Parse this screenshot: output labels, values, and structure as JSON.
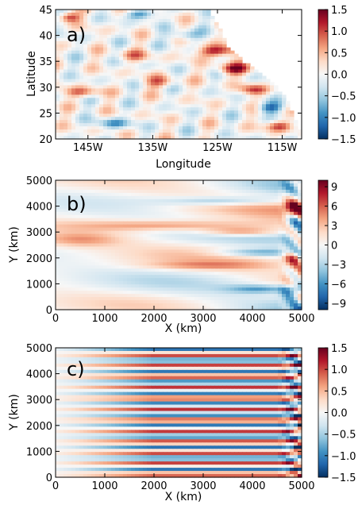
{
  "colors": {
    "diverging": [
      "#053061",
      "#2166ac",
      "#4393c3",
      "#92c5de",
      "#d1e5f0",
      "#f7f7f7",
      "#fddbc7",
      "#f4a582",
      "#d6604d",
      "#b2182b",
      "#67001f"
    ],
    "axis": "#000000"
  },
  "chart_data": [
    {
      "type": "heatmap",
      "panel_label": "a)",
      "xlabel": "Longitude",
      "ylabel": "Latitude",
      "xlim": [
        -150,
        -112
      ],
      "ylim": [
        20,
        45
      ],
      "xticks": [
        -145,
        -135,
        -125,
        -115
      ],
      "xtick_labels": [
        "145W",
        "135W",
        "125W",
        "115W"
      ],
      "yticks": [
        20,
        25,
        30,
        35,
        40,
        45
      ],
      "ytick_labels": [
        "20",
        "25",
        "30",
        "35",
        "40",
        "45"
      ],
      "colorbar": {
        "range": [
          -1.5,
          1.5
        ],
        "ticks": [
          1.5,
          1.0,
          0.5,
          0.0,
          -0.5,
          -1.0,
          -1.5
        ],
        "tick_labels": [
          "1.5",
          "1.0",
          "0.5",
          "0.0",
          "−0.5",
          "−1.0",
          "−1.5"
        ]
      },
      "coast": [
        [
          -126.5,
          45
        ],
        [
          -124.5,
          41
        ],
        [
          -123.5,
          38
        ],
        [
          -121,
          35
        ],
        [
          -118.5,
          33
        ],
        [
          -116.5,
          31
        ],
        [
          -114.5,
          28
        ],
        [
          -113,
          24
        ],
        [
          -112,
          20.5
        ]
      ],
      "features": [
        {
          "x": -125,
          "y": 37,
          "amp": 1.4,
          "sx": 2.0,
          "sy": 0.8
        },
        {
          "x": -122.5,
          "y": 33.5,
          "amp": 1.2,
          "sx": 1.8,
          "sy": 0.8
        },
        {
          "x": -119.5,
          "y": 29.5,
          "amp": 0.9,
          "sx": 1.6,
          "sy": 0.7
        },
        {
          "x": -117,
          "y": 26,
          "amp": -1.0,
          "sx": 1.4,
          "sy": 0.7
        },
        {
          "x": -115.5,
          "y": 22.5,
          "amp": 1.0,
          "sx": 1.5,
          "sy": 0.7
        },
        {
          "x": -148,
          "y": 43.5,
          "amp": 1.2,
          "sx": 1.2,
          "sy": 0.7
        },
        {
          "x": -137,
          "y": 44,
          "amp": -0.9,
          "sx": 1.8,
          "sy": 0.6
        },
        {
          "x": -146,
          "y": 29,
          "amp": 0.8,
          "sx": 2.0,
          "sy": 0.7
        },
        {
          "x": -141,
          "y": 23,
          "amp": -0.8,
          "sx": 1.8,
          "sy": 0.7
        },
        {
          "x": -134,
          "y": 31,
          "amp": 0.7,
          "sx": 1.8,
          "sy": 0.8
        },
        {
          "x": -130,
          "y": 40,
          "amp": -0.7,
          "sx": 1.6,
          "sy": 0.7
        },
        {
          "x": -138,
          "y": 36,
          "amp": 0.6,
          "sx": 1.8,
          "sy": 0.8
        }
      ]
    },
    {
      "type": "heatmap",
      "panel_label": "b)",
      "xlabel": "X (km)",
      "ylabel": "Y (km)",
      "xlim": [
        0,
        5000
      ],
      "ylim": [
        0,
        5000
      ],
      "xticks": [
        0,
        1000,
        2000,
        3000,
        4000,
        5000
      ],
      "xtick_labels": [
        "0",
        "1000",
        "2000",
        "3000",
        "4000",
        "5000"
      ],
      "yticks": [
        0,
        1000,
        2000,
        3000,
        4000,
        5000
      ],
      "ytick_labels": [
        "0",
        "1000",
        "2000",
        "3000",
        "4000",
        "5000"
      ],
      "colorbar": {
        "range": [
          -10,
          10
        ],
        "ticks": [
          9,
          6,
          3,
          0,
          -3,
          -6,
          -9
        ],
        "tick_labels": [
          "9",
          "6",
          "3",
          "0",
          "−3",
          "−6",
          "−9"
        ]
      },
      "features": [
        {
          "x": 3400,
          "y": 4200,
          "amp": -6,
          "sx": 900,
          "sy": 120
        },
        {
          "x": 2600,
          "y": 3250,
          "amp": 7,
          "sx": 1500,
          "sy": 150
        },
        {
          "x": 3800,
          "y": 3000,
          "amp": 8,
          "sx": 600,
          "sy": 120
        },
        {
          "x": 500,
          "y": 2700,
          "amp": 5,
          "sx": 600,
          "sy": 200
        },
        {
          "x": 4100,
          "y": 2200,
          "amp": -7,
          "sx": 600,
          "sy": 110
        },
        {
          "x": 3000,
          "y": 1700,
          "amp": 4,
          "sx": 900,
          "sy": 110
        },
        {
          "x": 4200,
          "y": 800,
          "amp": -7,
          "sx": 500,
          "sy": 120
        },
        {
          "x": 4900,
          "y": 4100,
          "amp": 9,
          "sx": 150,
          "sy": 250
        },
        {
          "x": 4900,
          "y": 3400,
          "amp": -9,
          "sx": 150,
          "sy": 200
        },
        {
          "x": 4850,
          "y": 2000,
          "amp": 8,
          "sx": 150,
          "sy": 200
        },
        {
          "x": 4800,
          "y": 700,
          "amp": -8,
          "sx": 160,
          "sy": 200
        }
      ]
    },
    {
      "type": "heatmap",
      "panel_label": "c)",
      "xlabel": "X (km)",
      "ylabel": "Y (km)",
      "xlim": [
        0,
        5000
      ],
      "ylim": [
        0,
        5000
      ],
      "xticks": [
        0,
        1000,
        2000,
        3000,
        4000,
        5000
      ],
      "xtick_labels": [
        "0",
        "1000",
        "2000",
        "3000",
        "4000",
        "5000"
      ],
      "yticks": [
        0,
        1000,
        2000,
        3000,
        4000,
        5000
      ],
      "ytick_labels": [
        "0",
        "1000",
        "2000",
        "3000",
        "4000",
        "5000"
      ],
      "colorbar": {
        "range": [
          -1.5,
          1.5
        ],
        "ticks": [
          1.5,
          1.0,
          0.5,
          0.0,
          -0.5,
          -1.0,
          -1.5
        ],
        "tick_labels": [
          "1.5",
          "1.0",
          "0.5",
          "0.0",
          "−0.5",
          "−1.0",
          "−1.5"
        ]
      },
      "stripe_wavelength": 420,
      "max_amplitude": 1.1
    }
  ]
}
